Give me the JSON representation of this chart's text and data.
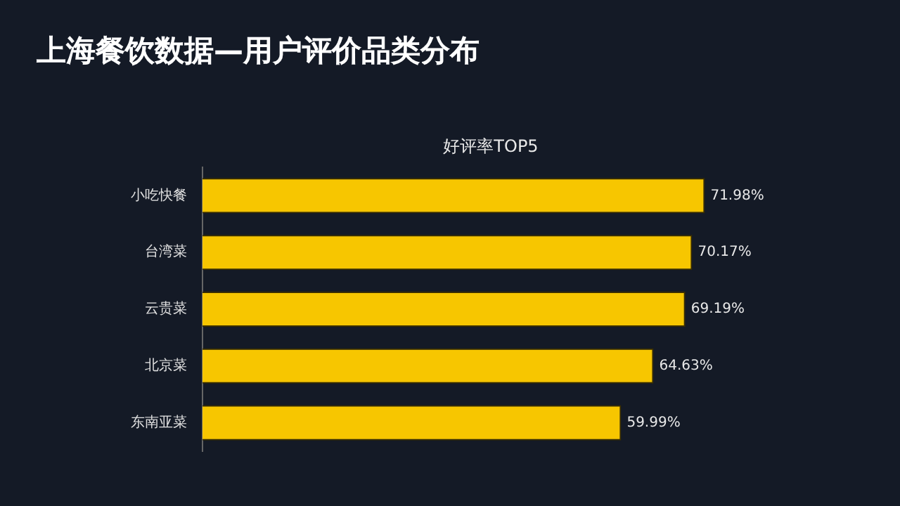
{
  "chart_data": {
    "type": "bar",
    "orientation": "horizontal",
    "title": "上海餐饮数据—用户评价品类分布",
    "subtitle": "好评率TOP5",
    "categories": [
      "小吃快餐",
      "台湾菜",
      "云贵菜",
      "北京菜",
      "东南亚菜"
    ],
    "values": [
      71.98,
      70.17,
      69.19,
      64.63,
      59.99
    ],
    "value_labels": [
      "71.98%",
      "70.17%",
      "69.19%",
      "64.63%",
      "59.99%"
    ],
    "color": "#f7c600",
    "tick_labels": "y",
    "legend": false
  }
}
